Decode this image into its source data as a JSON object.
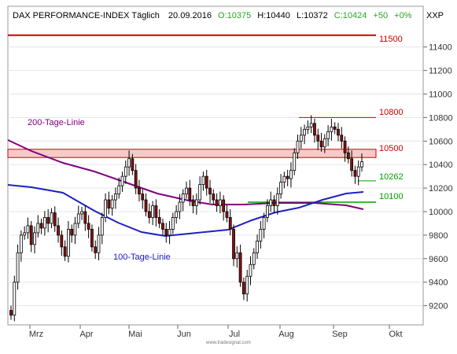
{
  "header": {
    "title": "DAX PERFORMANCE-INDEX Täglich",
    "date": "20.09.2016",
    "open": "O:10375",
    "high": "H:10440",
    "low": "L:10372",
    "close": "C:10424",
    "change": "+50",
    "change_pct": "+0%",
    "axis_code": "XXP"
  },
  "watermark": "www.tradesignal.com",
  "colors": {
    "up": "#2aa52a",
    "resistance": "#cc0000",
    "ma200": "#800080",
    "ma100": "#2020c0",
    "support": "#00a000",
    "zone_fill": "#f7c9c9",
    "candle": "#000000",
    "candle_down_body": "#8b1010"
  },
  "chart_data": {
    "type": "candlestick",
    "y_axis": {
      "ticks": [
        9200,
        9400,
        9600,
        9800,
        10000,
        10200,
        10400,
        10600,
        10800,
        11000,
        11200,
        11400
      ],
      "ylim": [
        9090,
        11690
      ]
    },
    "x_axis": {
      "labels": [
        "Mrz",
        "Apr",
        "Mai",
        "Jun",
        "Jul",
        "Aug",
        "Sep",
        "Okt"
      ]
    },
    "ohlc_closes": [
      9120,
      9400,
      9650,
      9800,
      9820,
      9880,
      9720,
      9820,
      9900,
      9860,
      9950,
      9900,
      9990,
      9880,
      9800,
      9700,
      9620,
      9850,
      9800,
      9900,
      9980,
      10000,
      9900,
      9850,
      9700,
      9650,
      9800,
      9950,
      10100,
      10030,
      10100,
      10150,
      10220,
      10300,
      10380,
      10450,
      10350,
      10200,
      10150,
      10100,
      10000,
      9950,
      10050,
      9950,
      9900,
      9850,
      9800,
      9850,
      9950,
      10000,
      10080,
      10150,
      10200,
      10100,
      10050,
      10100,
      10230,
      10300,
      10200,
      10150,
      10100,
      10050,
      10100,
      10000,
      9950,
      9850,
      9600,
      9650,
      9400,
      9300,
      9450,
      9550,
      9650,
      9750,
      9850,
      9950,
      10050,
      10100,
      10050,
      10150,
      10250,
      10300,
      10280,
      10350,
      10500,
      10600,
      10650,
      10700,
      10720,
      10750,
      10650,
      10600,
      10550,
      10620,
      10680,
      10720,
      10700,
      10650,
      10600,
      10500,
      10450,
      10350,
      10300,
      10380,
      10424
    ],
    "lines": [
      {
        "name": "200-Tage-Linie",
        "label": "200-Tage-Linie"
      },
      {
        "name": "100-Tage-Linie",
        "label": "100-Tage-Linie"
      }
    ],
    "levels": [
      {
        "value": 11500,
        "label": "11500"
      },
      {
        "value": 10800,
        "label": "10800"
      },
      {
        "value": 10500,
        "label": "10500"
      },
      {
        "value": 10262,
        "label": "10262"
      },
      {
        "value": 10100,
        "label": "10100"
      }
    ]
  }
}
